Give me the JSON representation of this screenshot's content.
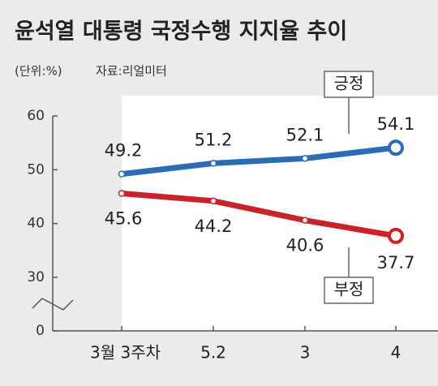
{
  "chart_data": {
    "type": "line",
    "title": "윤석열 대통령 국정수행 지지율 추이",
    "unit": "(단위:%)",
    "source": "자료:리얼미터",
    "categories": [
      "3월 3주차",
      "5.2",
      "3",
      "4"
    ],
    "series": [
      {
        "name": "긍정",
        "color": "#2b6cb5",
        "values": [
          49.2,
          51.2,
          52.1,
          54.1
        ]
      },
      {
        "name": "부정",
        "color": "#c8222b",
        "values": [
          45.6,
          44.2,
          40.6,
          37.7
        ]
      }
    ],
    "ylim": [
      0,
      60
    ],
    "yticks": [
      0,
      30,
      40,
      50,
      60
    ],
    "axis_break": [
      0,
      30
    ]
  }
}
